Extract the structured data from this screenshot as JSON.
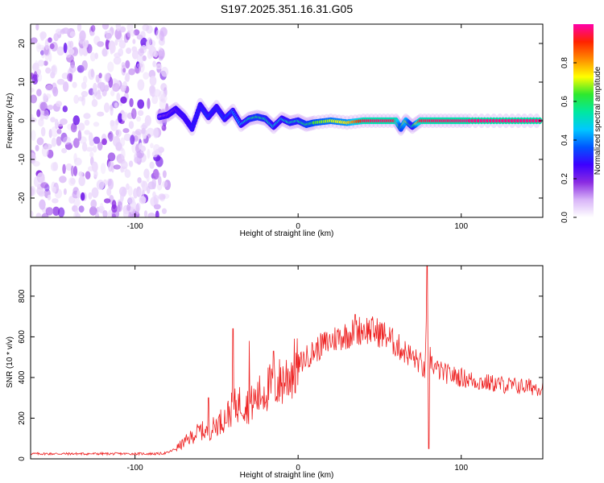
{
  "chart_data": [
    {
      "type": "heatmap",
      "title": "S197.2025.351.16.31.G05",
      "xlabel": "Height of straight line (km)",
      "ylabel": "Frequency (Hz)",
      "xlim": [
        -164,
        150
      ],
      "ylim": [
        -25,
        25
      ],
      "xticks": [
        -100,
        0,
        100
      ],
      "yticks": [
        -20,
        -10,
        0,
        10,
        20
      ],
      "colorbar": {
        "label": "Normalized spectral amplitude",
        "range": [
          0,
          1
        ],
        "ticks": [
          "0.0",
          "0.2",
          "0.4",
          "0.6",
          "0.8"
        ],
        "colormap": [
          "#ffffff",
          "#d8b4f8",
          "#8a2be2",
          "#3c00ff",
          "#0055ff",
          "#00c8ff",
          "#00e8a0",
          "#2ee82e",
          "#ffff00",
          "#ff8c00",
          "#ff2200",
          "#ff00aa"
        ]
      },
      "ridge": [
        {
          "x": -85,
          "f": 1.0,
          "a": 0.15
        },
        {
          "x": -80,
          "f": 1.5,
          "a": 0.18
        },
        {
          "x": -75,
          "f": 3.0,
          "a": 0.22
        },
        {
          "x": -70,
          "f": 1.0,
          "a": 0.25
        },
        {
          "x": -65,
          "f": -2.0,
          "a": 0.3
        },
        {
          "x": -60,
          "f": 4.0,
          "a": 0.3
        },
        {
          "x": -55,
          "f": 1.0,
          "a": 0.35
        },
        {
          "x": -50,
          "f": 3.5,
          "a": 0.3
        },
        {
          "x": -45,
          "f": 0.5,
          "a": 0.35
        },
        {
          "x": -40,
          "f": 2.5,
          "a": 0.4
        },
        {
          "x": -35,
          "f": -1.0,
          "a": 0.45
        },
        {
          "x": -30,
          "f": 0.5,
          "a": 0.55
        },
        {
          "x": -25,
          "f": 1.0,
          "a": 0.6
        },
        {
          "x": -20,
          "f": 0.5,
          "a": 0.55
        },
        {
          "x": -15,
          "f": -1.5,
          "a": 0.5
        },
        {
          "x": -10,
          "f": 0.5,
          "a": 0.5
        },
        {
          "x": -5,
          "f": -0.5,
          "a": 0.55
        },
        {
          "x": 0,
          "f": 0.0,
          "a": 0.55
        },
        {
          "x": 5,
          "f": -1.0,
          "a": 0.6
        },
        {
          "x": 10,
          "f": -0.5,
          "a": 0.65
        },
        {
          "x": 20,
          "f": 0.0,
          "a": 0.7
        },
        {
          "x": 30,
          "f": -0.5,
          "a": 0.75
        },
        {
          "x": 40,
          "f": 0.0,
          "a": 0.95
        },
        {
          "x": 50,
          "f": 0.0,
          "a": 0.97
        },
        {
          "x": 60,
          "f": 0.0,
          "a": 0.95
        },
        {
          "x": 63,
          "f": -2.0,
          "a": 0.6
        },
        {
          "x": 66,
          "f": 0.0,
          "a": 0.8
        },
        {
          "x": 70,
          "f": -1.5,
          "a": 0.5
        },
        {
          "x": 75,
          "f": 0.0,
          "a": 0.95
        },
        {
          "x": 85,
          "f": 0.0,
          "a": 0.97
        },
        {
          "x": 95,
          "f": 0.0,
          "a": 0.97
        },
        {
          "x": 105,
          "f": 0.0,
          "a": 0.98
        },
        {
          "x": 120,
          "f": 0.0,
          "a": 0.98
        },
        {
          "x": 135,
          "f": 0.0,
          "a": 0.98
        },
        {
          "x": 150,
          "f": 0.0,
          "a": 0.98
        }
      ],
      "noise_region_x": [
        -164,
        -80
      ]
    },
    {
      "type": "line",
      "title": "",
      "xlabel": "Height of straight line (km)",
      "ylabel": "SNR (10 * v/v)",
      "xlim": [
        -164,
        150
      ],
      "ylim": [
        0,
        950
      ],
      "xticks": [
        -100,
        0,
        100
      ],
      "yticks": [
        0,
        200,
        400,
        600,
        800
      ],
      "color": "#ee2222",
      "series": [
        {
          "name": "SNR",
          "x": [
            -164,
            -150,
            -130,
            -110,
            -95,
            -85,
            -80,
            -75,
            -70,
            -65,
            -60,
            -55,
            -50,
            -45,
            -40,
            -35,
            -30,
            -25,
            -20,
            -15,
            -10,
            -5,
            0,
            5,
            10,
            15,
            20,
            25,
            30,
            35,
            40,
            45,
            50,
            55,
            60,
            65,
            70,
            75,
            78,
            79,
            80,
            81,
            82,
            85,
            90,
            95,
            100,
            105,
            110,
            120,
            130,
            140,
            150
          ],
          "values": [
            25,
            25,
            25,
            25,
            25,
            25,
            30,
            50,
            80,
            110,
            140,
            130,
            170,
            200,
            250,
            280,
            260,
            300,
            340,
            360,
            380,
            420,
            460,
            500,
            530,
            560,
            580,
            600,
            610,
            625,
            640,
            630,
            620,
            600,
            560,
            530,
            500,
            470,
            420,
            950,
            200,
            500,
            470,
            440,
            420,
            410,
            400,
            390,
            380,
            370,
            360,
            355,
            350
          ]
        }
      ],
      "spikes": [
        {
          "x": -55,
          "y": 300
        },
        {
          "x": -40,
          "y": 640
        },
        {
          "x": -30,
          "y": 580
        },
        {
          "x": -15,
          "y": 530
        },
        {
          "x": 35,
          "y": 710
        },
        {
          "x": 79,
          "y": 950
        },
        {
          "x": 80,
          "y": 50
        }
      ]
    }
  ]
}
